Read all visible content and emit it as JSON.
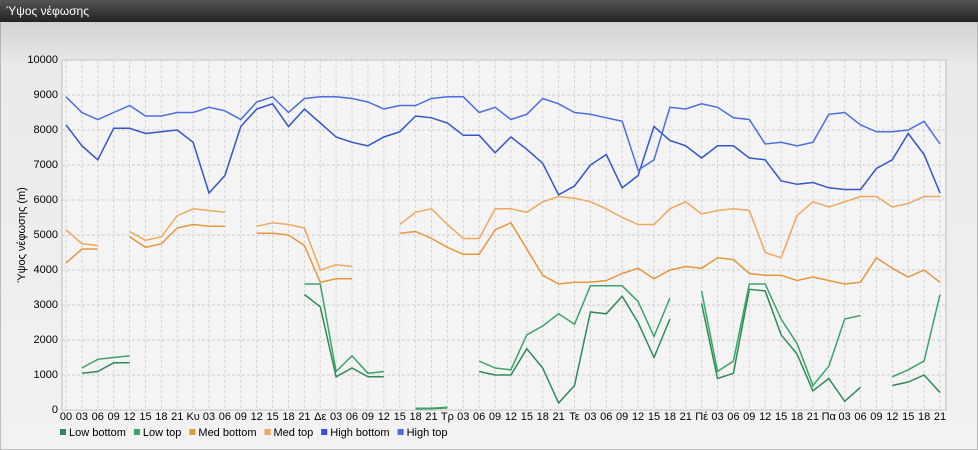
{
  "window_title": "Ύψος νέφωσης",
  "chart_data": {
    "type": "line",
    "ylabel": "Ύψος νέφωσης (m)",
    "categories": [
      "00",
      "03",
      "06",
      "09",
      "12",
      "15",
      "18",
      "21",
      "Κυ",
      "03",
      "06",
      "09",
      "12",
      "15",
      "18",
      "21",
      "Δε",
      "03",
      "06",
      "09",
      "12",
      "15",
      "18",
      "21",
      "Τρ",
      "03",
      "06",
      "09",
      "12",
      "15",
      "18",
      "21",
      "Τε",
      "03",
      "06",
      "09",
      "12",
      "15",
      "18",
      "21",
      "Πέ",
      "03",
      "06",
      "09",
      "12",
      "15",
      "18",
      "21",
      "Πα",
      "03",
      "06",
      "09",
      "12",
      "15",
      "18",
      "21"
    ],
    "ylim": [
      0,
      10000
    ],
    "yticks": [
      0,
      1000,
      2000,
      3000,
      4000,
      5000,
      6000,
      7000,
      8000,
      9000,
      10000
    ],
    "grid": true,
    "legend": "bottom",
    "series": [
      {
        "name": "Low bottom",
        "color": "#2e8b57",
        "values": [
          null,
          1050,
          1100,
          1350,
          1350,
          null,
          null,
          null,
          null,
          null,
          null,
          null,
          null,
          null,
          null,
          3300,
          2950,
          950,
          1200,
          950,
          950,
          null,
          30,
          40,
          60,
          null,
          1100,
          1000,
          1000,
          1750,
          1200,
          200,
          700,
          2800,
          2750,
          3250,
          2500,
          1500,
          2600,
          null,
          3050,
          900,
          1050,
          3450,
          3400,
          2150,
          1600,
          550,
          900,
          250,
          650,
          null,
          700,
          800,
          1000,
          500
        ]
      },
      {
        "name": "Low top",
        "color": "#3aa36a",
        "values": [
          null,
          1200,
          1450,
          1500,
          1550,
          null,
          null,
          null,
          null,
          null,
          null,
          null,
          null,
          null,
          null,
          3600,
          3600,
          1100,
          1550,
          1050,
          1100,
          null,
          50,
          50,
          80,
          null,
          1400,
          1200,
          1150,
          2150,
          2400,
          2750,
          2450,
          3550,
          3550,
          3550,
          3100,
          2100,
          3200,
          null,
          3400,
          1100,
          1400,
          3600,
          3600,
          2600,
          1900,
          700,
          1250,
          2600,
          2700,
          null,
          950,
          1150,
          1400,
          3300
        ]
      },
      {
        "name": "Med bottom",
        "color": "#e8963c",
        "values": [
          4200,
          4600,
          4600,
          null,
          4950,
          4650,
          4750,
          5200,
          5300,
          5250,
          5250,
          null,
          5050,
          5050,
          5000,
          4700,
          3650,
          3750,
          3750,
          null,
          null,
          5050,
          5100,
          4900,
          4650,
          4450,
          4450,
          5150,
          5350,
          4600,
          3850,
          3600,
          3650,
          3650,
          3700,
          3900,
          4050,
          3750,
          4000,
          4100,
          4050,
          4350,
          4300,
          3900,
          3850,
          3850,
          3700,
          3800,
          3700,
          3600,
          3650,
          4350,
          4050,
          3800,
          4000,
          3650
        ]
      },
      {
        "name": "Med top",
        "color": "#f0a85a",
        "values": [
          5150,
          4750,
          4700,
          null,
          5100,
          4850,
          4950,
          5550,
          5750,
          5700,
          5650,
          null,
          5250,
          5350,
          5300,
          5200,
          4000,
          4150,
          4100,
          null,
          null,
          5300,
          5650,
          5750,
          5300,
          4900,
          4900,
          5750,
          5750,
          5650,
          5950,
          6100,
          6050,
          5950,
          5750,
          5500,
          5300,
          5300,
          5750,
          5950,
          5600,
          5700,
          5750,
          5700,
          4500,
          4350,
          5550,
          5950,
          5800,
          5950,
          6100,
          6100,
          5800,
          5900,
          6100,
          6100
        ]
      },
      {
        "name": "High bottom",
        "color": "#3355cc",
        "values": [
          8150,
          7550,
          7150,
          8050,
          8050,
          7900,
          7950,
          8000,
          7650,
          6200,
          6700,
          8100,
          8600,
          8750,
          8100,
          8600,
          8200,
          7800,
          7650,
          7550,
          7800,
          7950,
          8400,
          8350,
          8200,
          7850,
          7850,
          7350,
          7800,
          7450,
          7050,
          6150,
          6400,
          7000,
          7300,
          6350,
          6700,
          8100,
          7700,
          7550,
          7200,
          7550,
          7550,
          7200,
          7150,
          6550,
          6450,
          6500,
          6350,
          6300,
          6300,
          6900,
          7150,
          7900,
          7300,
          6200
        ]
      },
      {
        "name": "High top",
        "color": "#4a6ee0",
        "values": [
          8950,
          8500,
          8300,
          8500,
          8700,
          8400,
          8400,
          8500,
          8500,
          8650,
          8550,
          8300,
          8800,
          8950,
          8500,
          8900,
          8950,
          8950,
          8900,
          8800,
          8600,
          8700,
          8700,
          8900,
          8950,
          8950,
          8500,
          8650,
          8300,
          8450,
          8900,
          8750,
          8500,
          8450,
          8350,
          8250,
          6850,
          7150,
          8650,
          8600,
          8750,
          8650,
          8350,
          8300,
          7600,
          7650,
          7550,
          7650,
          8450,
          8500,
          8150,
          7950,
          7950,
          8000,
          8250,
          7600
        ]
      }
    ]
  }
}
